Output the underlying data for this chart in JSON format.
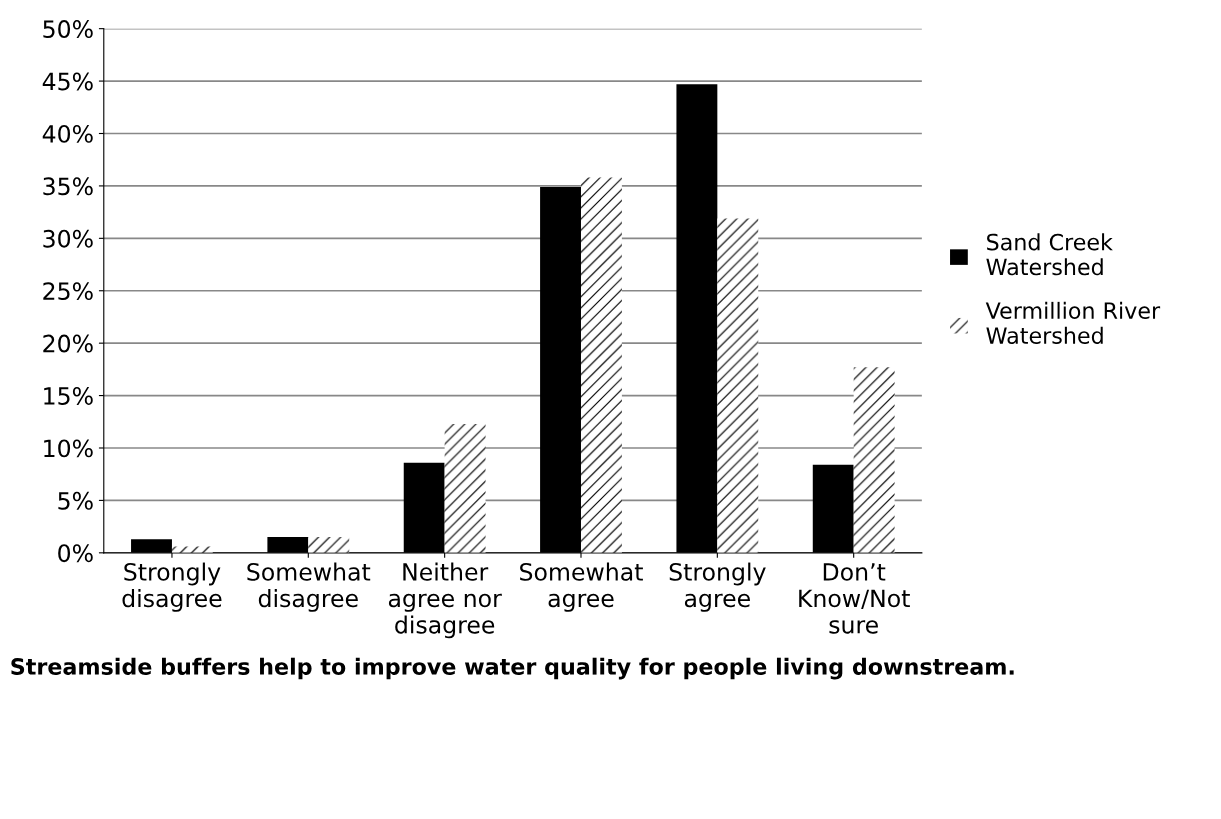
{
  "chart_data": {
    "type": "bar",
    "xlabel": "Streamside buffers help to improve water quality for people living downstream.",
    "categories": [
      "Strongly disagree",
      "Somewhat disagree",
      "Neither agree nor disagree",
      "Somewhat agree",
      "Strongly agree",
      "Don’t Know/Not sure"
    ],
    "series": [
      {
        "name": "Sand Creek Watershed",
        "color": "#000000",
        "values": [
          1.3,
          1.5,
          8.6,
          34.9,
          44.7,
          8.4
        ]
      },
      {
        "name": "Vermillion River Watershed",
        "color": "#ffffff",
        "values": [
          0.6,
          1.5,
          12.3,
          35.8,
          31.9,
          17.7
        ]
      }
    ],
    "ylim": [
      0,
      50
    ],
    "yticks": [
      {
        "value": 0,
        "label": "0%"
      },
      {
        "value": 5,
        "label": "5%"
      },
      {
        "value": 10,
        "label": "10%"
      },
      {
        "value": 15,
        "label": "15%"
      },
      {
        "value": 20,
        "label": "20%"
      },
      {
        "value": 25,
        "label": "25%"
      },
      {
        "value": 30,
        "label": "30%"
      },
      {
        "value": 35,
        "label": "35%"
      },
      {
        "value": 40,
        "label": "40%"
      },
      {
        "value": 45,
        "label": "45%"
      },
      {
        "value": 50,
        "label": "50%"
      }
    ],
    "grid": "y",
    "legend": "right"
  }
}
